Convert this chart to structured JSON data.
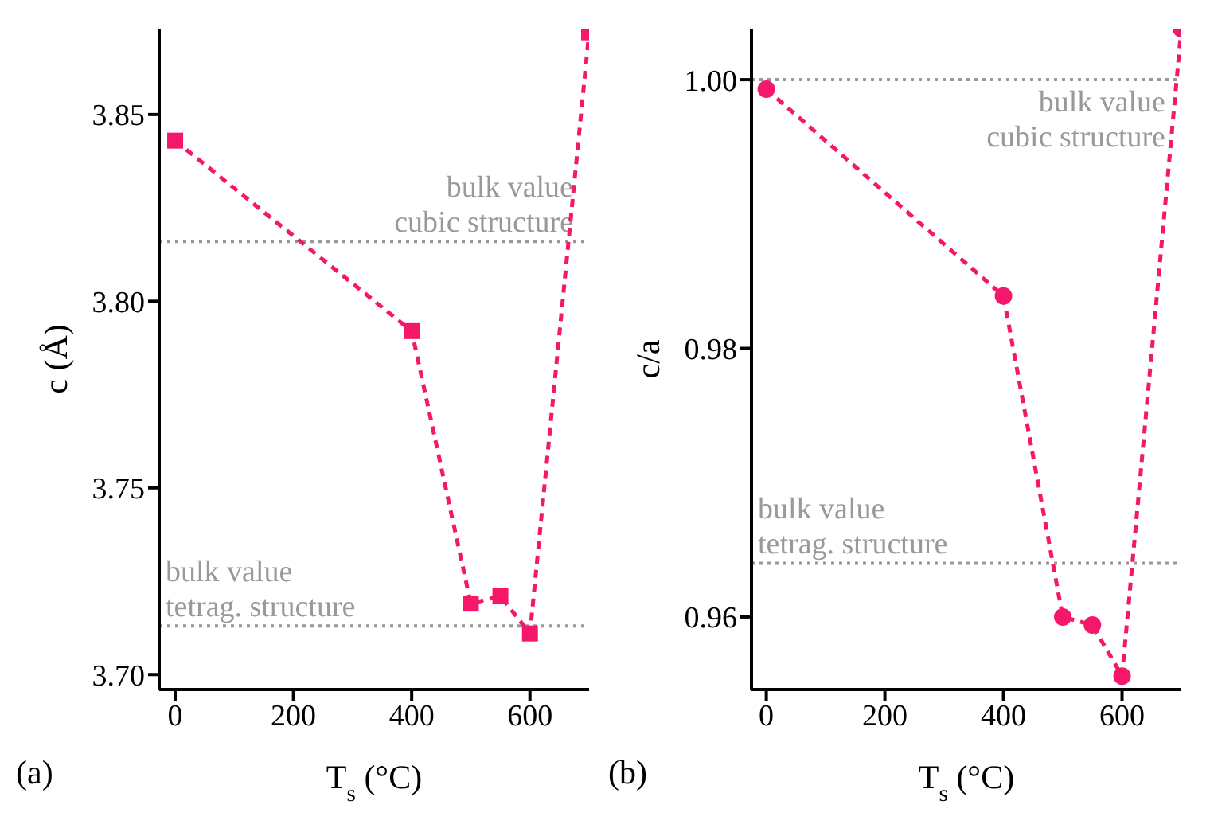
{
  "chart_data": [
    {
      "type": "line",
      "xlabel": "T$_{s}$ (°C)",
      "ylabel": "c (Å)",
      "x": [
        0,
        400,
        500,
        550,
        600,
        700
      ],
      "series": [
        {
          "color": "#f5186a",
          "values": [
            3.843,
            3.792,
            3.719,
            3.721,
            3.711,
            3.872
          ]
        }
      ],
      "xlim": [
        -27,
        700
      ],
      "xticks": [
        0,
        200,
        400,
        600
      ],
      "ylim": [
        3.696,
        3.873
      ],
      "yticks": [
        {
          "value": 3.7,
          "label": "3.70"
        },
        3.75,
        {
          "value": 3.8,
          "label": "3.80"
        },
        3.85
      ],
      "marker": "square",
      "line_style": "dashed",
      "grid": false,
      "legend": false,
      "ref_lines": [
        {
          "axis": "y",
          "value": 3.816,
          "label": "bulk value\ncubic structure",
          "color": "#999999",
          "line_style": "dotted"
        },
        {
          "axis": "y",
          "value": 3.713,
          "label": "bulk value\ntetrag. structure",
          "color": "#999999",
          "line_style": "dotted"
        }
      ],
      "annotations": [
        "(a)"
      ]
    },
    {
      "type": "line",
      "xlabel": "T$_{s}$ (°C)",
      "ylabel": "c/a",
      "x": [
        0,
        400,
        500,
        550,
        600,
        700
      ],
      "series": [
        {
          "color": "#f5186a",
          "values": [
            0.9993,
            0.9839,
            0.96,
            0.9594,
            0.9556,
            1.0038
          ]
        }
      ],
      "xlim": [
        -25,
        700
      ],
      "xticks": [
        0,
        200,
        400,
        600
      ],
      "ylim": [
        0.9546,
        1.0038
      ],
      "yticks": [
        {
          "value": 0.96,
          "label": "0.96"
        },
        {
          "value": 0.98,
          "label": "0.98"
        },
        {
          "value": 1,
          "label": "1.00"
        }
      ],
      "marker": "circle",
      "line_style": "dashed",
      "grid": false,
      "legend": false,
      "ref_lines": [
        {
          "axis": "y",
          "value": 1.0,
          "label": "bulk value\ncubic structure",
          "color": "#999999",
          "line_style": "dotted"
        },
        {
          "axis": "y",
          "value": 0.964,
          "label": "bulk value\ntetrag. structure",
          "color": "#999999",
          "line_style": "dotted"
        }
      ],
      "annotations": [
        "(b)"
      ]
    }
  ]
}
